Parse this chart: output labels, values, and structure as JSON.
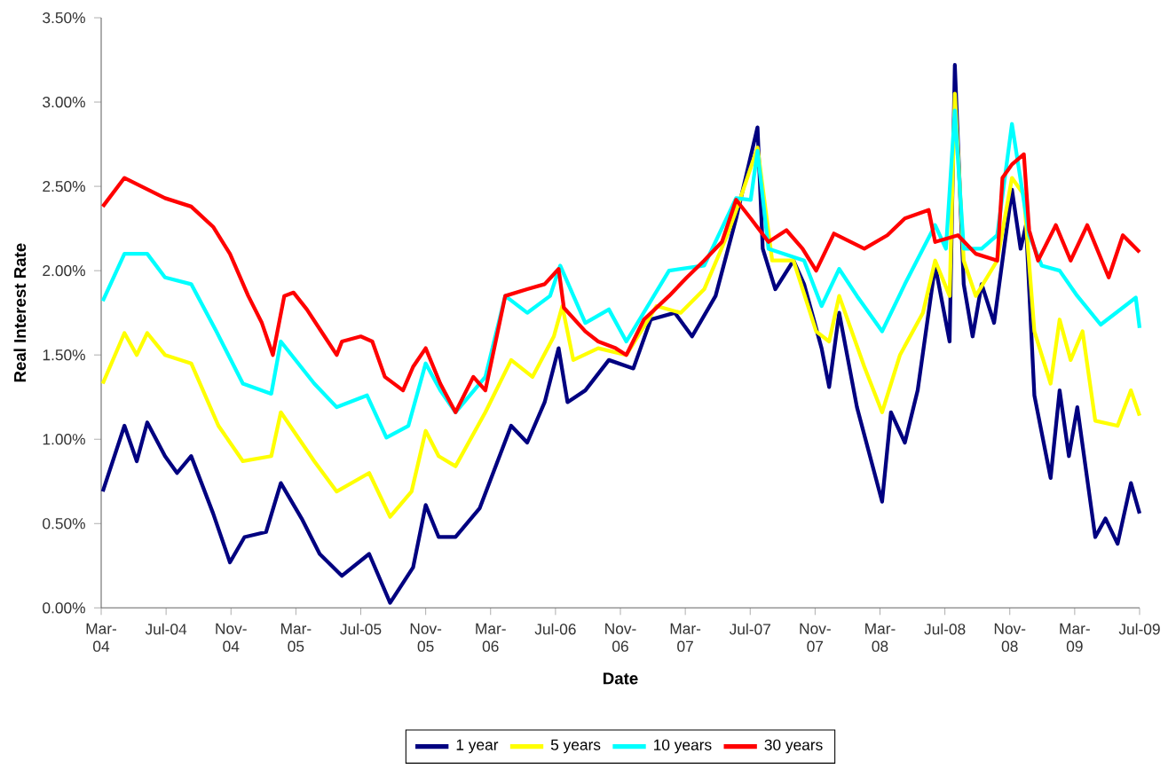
{
  "chart_data": {
    "type": "line",
    "xlabel": "Date",
    "ylabel": "Real Interest Rate",
    "xlim": [
      "2004-03-01",
      "2009-07-01"
    ],
    "xticks": [
      {
        "value": "2004-03-01",
        "label": "Mar-04"
      },
      {
        "value": "2004-07-01",
        "label": "Jul-04"
      },
      {
        "value": "2004-11-01",
        "label": "Nov-04"
      },
      {
        "value": "2005-03-01",
        "label": "Mar-05"
      },
      {
        "value": "2005-07-01",
        "label": "Jul-05"
      },
      {
        "value": "2005-11-01",
        "label": "Nov-05"
      },
      {
        "value": "2006-03-01",
        "label": "Mar-06"
      },
      {
        "value": "2006-07-01",
        "label": "Jul-06"
      },
      {
        "value": "2006-11-01",
        "label": "Nov-06"
      },
      {
        "value": "2007-03-01",
        "label": "Mar-07"
      },
      {
        "value": "2007-07-01",
        "label": "Jul-07"
      },
      {
        "value": "2007-11-01",
        "label": "Nov-07"
      },
      {
        "value": "2008-03-01",
        "label": "Mar-08"
      },
      {
        "value": "2008-07-01",
        "label": "Jul-08"
      },
      {
        "value": "2008-11-01",
        "label": "Nov-08"
      },
      {
        "value": "2009-03-01",
        "label": "Mar-09"
      },
      {
        "value": "2009-07-01",
        "label": "Jul-09"
      }
    ],
    "ylim": [
      0,
      3.5
    ],
    "yticks": [
      {
        "value": 0,
        "label": "0.00%"
      },
      {
        "value": 0.5,
        "label": "0.50%"
      },
      {
        "value": 1,
        "label": "1.00%"
      },
      {
        "value": 1.5,
        "label": "1.50%"
      },
      {
        "value": 2,
        "label": "2.00%"
      },
      {
        "value": 2.5,
        "label": "2.50%"
      },
      {
        "value": 3,
        "label": "3.00%"
      },
      {
        "value": 3.5,
        "label": "3.50%"
      }
    ],
    "legend": "bottom",
    "grid": false,
    "marker": "none",
    "line_style": "solid",
    "series": [
      {
        "name": "1 year",
        "color": "#000080",
        "x": [
          "2004-03-04",
          "2004-04-14",
          "2004-05-07",
          "2004-05-27",
          "2004-06-29",
          "2004-07-22",
          "2004-08-18",
          "2004-09-28",
          "2004-10-30",
          "2004-11-26",
          "2005-01-06",
          "2005-02-03",
          "2005-03-12",
          "2005-04-15",
          "2005-05-27",
          "2005-07-17",
          "2005-08-26",
          "2005-10-08",
          "2005-11-01",
          "2005-11-25",
          "2005-12-27",
          "2006-02-10",
          "2006-04-09",
          "2006-05-09",
          "2006-06-11",
          "2006-07-07",
          "2006-07-24",
          "2006-08-27",
          "2006-10-10",
          "2006-11-25",
          "2006-12-28",
          "2007-02-11",
          "2007-03-14",
          "2007-04-27",
          "2007-06-05",
          "2007-07-15",
          "2007-07-25",
          "2007-08-18",
          "2007-09-21",
          "2007-10-11",
          "2007-11-13",
          "2007-11-27",
          "2007-12-16",
          "2008-01-19",
          "2008-03-05",
          "2008-03-22",
          "2008-04-17",
          "2008-05-11",
          "2008-06-13",
          "2008-07-10",
          "2008-07-20",
          "2008-08-06",
          "2008-08-23",
          "2008-09-09",
          "2008-10-02",
          "2008-11-05",
          "2008-11-21",
          "2008-12-01",
          "2008-12-17",
          "2009-01-17",
          "2009-02-03",
          "2009-02-19",
          "2009-03-06",
          "2009-04-09",
          "2009-04-28",
          "2009-05-21",
          "2009-06-15",
          "2009-07-01"
        ],
        "values": [
          0.69,
          1.08,
          0.87,
          1.1,
          0.9,
          0.8,
          0.9,
          0.56,
          0.27,
          0.42,
          0.45,
          0.74,
          0.53,
          0.32,
          0.19,
          0.32,
          0.03,
          0.24,
          0.61,
          0.42,
          0.42,
          0.59,
          1.08,
          0.98,
          1.22,
          1.54,
          1.22,
          1.29,
          1.47,
          1.42,
          1.71,
          1.75,
          1.61,
          1.85,
          2.31,
          2.85,
          2.13,
          1.89,
          2.06,
          1.92,
          1.54,
          1.31,
          1.75,
          1.19,
          0.63,
          1.16,
          0.98,
          1.29,
          2.03,
          1.58,
          3.22,
          1.92,
          1.61,
          1.92,
          1.69,
          2.48,
          2.13,
          2.27,
          1.26,
          0.77,
          1.29,
          0.9,
          1.19,
          0.42,
          0.53,
          0.38,
          0.74,
          0.56
        ]
      },
      {
        "name": "5 years",
        "color": "#ffff00",
        "x": [
          "2004-03-04",
          "2004-04-14",
          "2004-05-07",
          "2004-05-27",
          "2004-06-29",
          "2004-08-18",
          "2004-10-08",
          "2004-11-23",
          "2005-01-16",
          "2005-02-03",
          "2005-04-05",
          "2005-05-17",
          "2005-07-17",
          "2005-08-26",
          "2005-10-05",
          "2005-11-01",
          "2005-11-25",
          "2005-12-27",
          "2006-02-20",
          "2006-04-09",
          "2006-05-19",
          "2006-06-28",
          "2006-07-14",
          "2006-08-04",
          "2006-09-20",
          "2006-11-12",
          "2007-01-08",
          "2007-02-21",
          "2007-04-06",
          "2007-05-19",
          "2007-06-12",
          "2007-07-15",
          "2007-08-12",
          "2007-09-21",
          "2007-11-03",
          "2007-11-27",
          "2007-12-16",
          "2008-02-02",
          "2008-03-05",
          "2008-04-08",
          "2008-05-21",
          "2008-06-13",
          "2008-07-10",
          "2008-07-20",
          "2008-08-06",
          "2008-08-29",
          "2008-10-08",
          "2008-11-05",
          "2008-11-27",
          "2008-12-17",
          "2009-01-17",
          "2009-02-03",
          "2009-02-22",
          "2009-03-16",
          "2009-04-09",
          "2009-05-21",
          "2009-06-15",
          "2009-07-01"
        ],
        "values": [
          1.33,
          1.63,
          1.5,
          1.63,
          1.5,
          1.45,
          1.08,
          0.87,
          0.9,
          1.16,
          0.87,
          0.69,
          0.8,
          0.54,
          0.69,
          1.05,
          0.9,
          0.84,
          1.16,
          1.47,
          1.37,
          1.61,
          1.79,
          1.47,
          1.54,
          1.5,
          1.79,
          1.75,
          1.89,
          2.21,
          2.42,
          2.73,
          2.06,
          2.06,
          1.64,
          1.58,
          1.85,
          1.43,
          1.16,
          1.5,
          1.75,
          2.06,
          1.85,
          3.05,
          2.06,
          1.85,
          2.06,
          2.55,
          2.45,
          1.64,
          1.33,
          1.71,
          1.47,
          1.64,
          1.11,
          1.08,
          1.29,
          1.14
        ]
      },
      {
        "name": "10 years",
        "color": "#00ffff",
        "x": [
          "2004-03-04",
          "2004-04-14",
          "2004-05-27",
          "2004-06-29",
          "2004-08-18",
          "2004-10-04",
          "2004-11-23",
          "2005-01-16",
          "2005-02-03",
          "2005-04-05",
          "2005-05-17",
          "2005-07-13",
          "2005-08-19",
          "2005-09-29",
          "2005-11-01",
          "2005-11-28",
          "2005-12-27",
          "2006-02-20",
          "2006-03-29",
          "2006-05-09",
          "2006-06-21",
          "2006-07-10",
          "2006-08-27",
          "2006-10-10",
          "2006-11-12",
          "2007-02-01",
          "2007-04-06",
          "2007-06-05",
          "2007-07-02",
          "2007-07-15",
          "2007-08-05",
          "2007-10-11",
          "2007-11-13",
          "2007-12-16",
          "2008-01-19",
          "2008-03-05",
          "2008-04-17",
          "2008-06-13",
          "2008-07-03",
          "2008-07-20",
          "2008-08-06",
          "2008-09-09",
          "2008-10-08",
          "2008-11-05",
          "2008-12-07",
          "2008-12-31",
          "2009-02-03",
          "2009-03-06",
          "2009-04-19",
          "2009-06-24",
          "2009-07-01"
        ],
        "values": [
          1.82,
          2.1,
          2.1,
          1.96,
          1.92,
          1.64,
          1.33,
          1.27,
          1.58,
          1.33,
          1.19,
          1.26,
          1.01,
          1.08,
          1.45,
          1.29,
          1.16,
          1.37,
          1.85,
          1.75,
          1.85,
          2.03,
          1.69,
          1.77,
          1.58,
          2.0,
          2.03,
          2.43,
          2.42,
          2.71,
          2.13,
          2.06,
          1.79,
          2.01,
          1.85,
          1.64,
          1.92,
          2.27,
          2.13,
          2.95,
          2.13,
          2.13,
          2.21,
          2.87,
          2.21,
          2.03,
          2.0,
          1.85,
          1.68,
          1.84,
          1.66
        ]
      },
      {
        "name": "30 years",
        "color": "#ff0000",
        "x": [
          "2004-03-04",
          "2004-04-14",
          "2004-06-29",
          "2004-08-18",
          "2004-09-28",
          "2004-10-30",
          "2004-12-03",
          "2004-12-29",
          "2005-01-19",
          "2005-02-09",
          "2005-02-25",
          "2005-03-22",
          "2005-04-24",
          "2005-05-17",
          "2005-05-27",
          "2005-07-01",
          "2005-07-23",
          "2005-08-16",
          "2005-09-19",
          "2005-10-08",
          "2005-11-01",
          "2005-11-28",
          "2005-12-27",
          "2006-01-30",
          "2006-02-20",
          "2006-03-29",
          "2006-05-09",
          "2006-06-11",
          "2006-07-07",
          "2006-07-17",
          "2006-08-27",
          "2006-09-20",
          "2006-10-23",
          "2006-11-12",
          "2006-12-15",
          "2007-02-01",
          "2007-03-04",
          "2007-04-06",
          "2007-05-09",
          "2007-06-05",
          "2007-07-02",
          "2007-08-05",
          "2007-09-08",
          "2007-10-08",
          "2007-11-03",
          "2007-12-06",
          "2008-02-02",
          "2008-03-15",
          "2008-04-17",
          "2008-06-01",
          "2008-06-13",
          "2008-07-26",
          "2008-08-29",
          "2008-10-08",
          "2008-10-18",
          "2008-11-05",
          "2008-11-27",
          "2008-12-07",
          "2008-12-24",
          "2009-01-27",
          "2009-02-22",
          "2009-03-25",
          "2009-05-04",
          "2009-05-31",
          "2009-07-01"
        ],
        "values": [
          2.38,
          2.55,
          2.43,
          2.38,
          2.26,
          2.1,
          1.85,
          1.69,
          1.5,
          1.85,
          1.87,
          1.77,
          1.61,
          1.5,
          1.58,
          1.61,
          1.58,
          1.37,
          1.29,
          1.43,
          1.54,
          1.33,
          1.16,
          1.37,
          1.29,
          1.85,
          1.89,
          1.92,
          2.01,
          1.78,
          1.64,
          1.58,
          1.54,
          1.5,
          1.71,
          1.85,
          1.96,
          2.06,
          2.17,
          2.42,
          2.31,
          2.17,
          2.24,
          2.13,
          2.0,
          2.22,
          2.13,
          2.21,
          2.31,
          2.36,
          2.17,
          2.21,
          2.1,
          2.06,
          2.55,
          2.63,
          2.69,
          2.24,
          2.06,
          2.27,
          2.06,
          2.27,
          1.96,
          2.21,
          2.11
        ]
      }
    ]
  }
}
